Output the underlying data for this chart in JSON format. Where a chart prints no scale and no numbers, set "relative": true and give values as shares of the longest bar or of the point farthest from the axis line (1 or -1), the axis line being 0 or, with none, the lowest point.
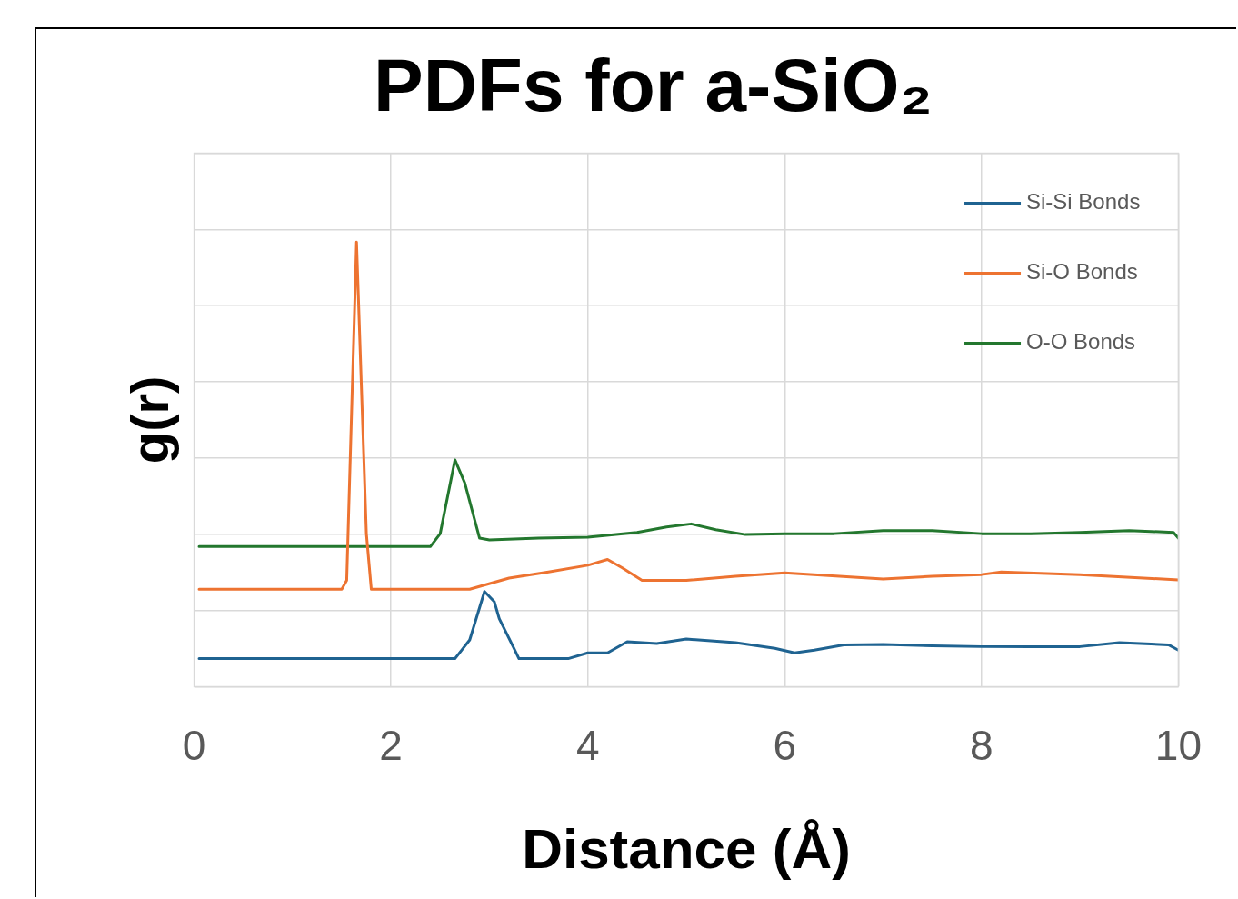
{
  "chart_data": {
    "type": "line",
    "title": "PDFs for a-SiO₂",
    "xlabel": "Distance (Å)",
    "ylabel": "g(r)",
    "relative": true,
    "xlim": [
      0,
      10
    ],
    "xticks": [
      0,
      2,
      4,
      6,
      8,
      10
    ],
    "grid": true,
    "legend": "top right",
    "marker": "none",
    "line_style": "solid",
    "series": [
      {
        "name": "Si-Si Bonds",
        "color": "#1f6391",
        "x": [
          0.05,
          2.65,
          2.8,
          2.95,
          3.05,
          3.1,
          3.25,
          3.3,
          3.8,
          4.0,
          4.2,
          4.4,
          4.7,
          5.0,
          5.5,
          5.9,
          6.1,
          6.3,
          6.6,
          7.0,
          7.5,
          8.0,
          8.5,
          9.0,
          9.4,
          9.9,
          10
        ],
        "values": [
          0.063,
          0.063,
          0.105,
          0.214,
          0.191,
          0.153,
          0.086,
          0.063,
          0.063,
          0.076,
          0.076,
          0.101,
          0.097,
          0.107,
          0.099,
          0.086,
          0.076,
          0.082,
          0.094,
          0.095,
          0.092,
          0.09,
          0.09,
          0.09,
          0.099,
          0.094,
          0.082
        ]
      },
      {
        "name": "Si-O Bonds",
        "color": "#ed7331",
        "x": [
          0.05,
          1.5,
          1.55,
          1.65,
          1.75,
          1.8,
          2.8,
          3.2,
          3.6,
          4.0,
          4.2,
          4.35,
          4.55,
          5.0,
          5.5,
          6.0,
          7.0,
          7.5,
          8.0,
          8.2,
          9.0,
          10
        ],
        "values": [
          0.219,
          0.219,
          0.239,
          1.0,
          0.344,
          0.219,
          0.219,
          0.244,
          0.258,
          0.273,
          0.286,
          0.267,
          0.239,
          0.239,
          0.248,
          0.256,
          0.242,
          0.248,
          0.252,
          0.258,
          0.252,
          0.24
        ]
      },
      {
        "name": "O-O Bonds",
        "color": "#23772e",
        "x": [
          0.05,
          2.4,
          2.5,
          2.65,
          2.75,
          2.9,
          3.0,
          3.5,
          4.0,
          4.5,
          4.8,
          5.05,
          5.3,
          5.6,
          6.0,
          6.5,
          7.0,
          7.5,
          8.0,
          8.5,
          9.0,
          9.5,
          9.95,
          10
        ],
        "values": [
          0.315,
          0.315,
          0.344,
          0.51,
          0.458,
          0.334,
          0.33,
          0.334,
          0.336,
          0.347,
          0.359,
          0.366,
          0.353,
          0.342,
          0.344,
          0.344,
          0.351,
          0.351,
          0.344,
          0.344,
          0.347,
          0.351,
          0.347,
          0.334
        ]
      }
    ]
  }
}
